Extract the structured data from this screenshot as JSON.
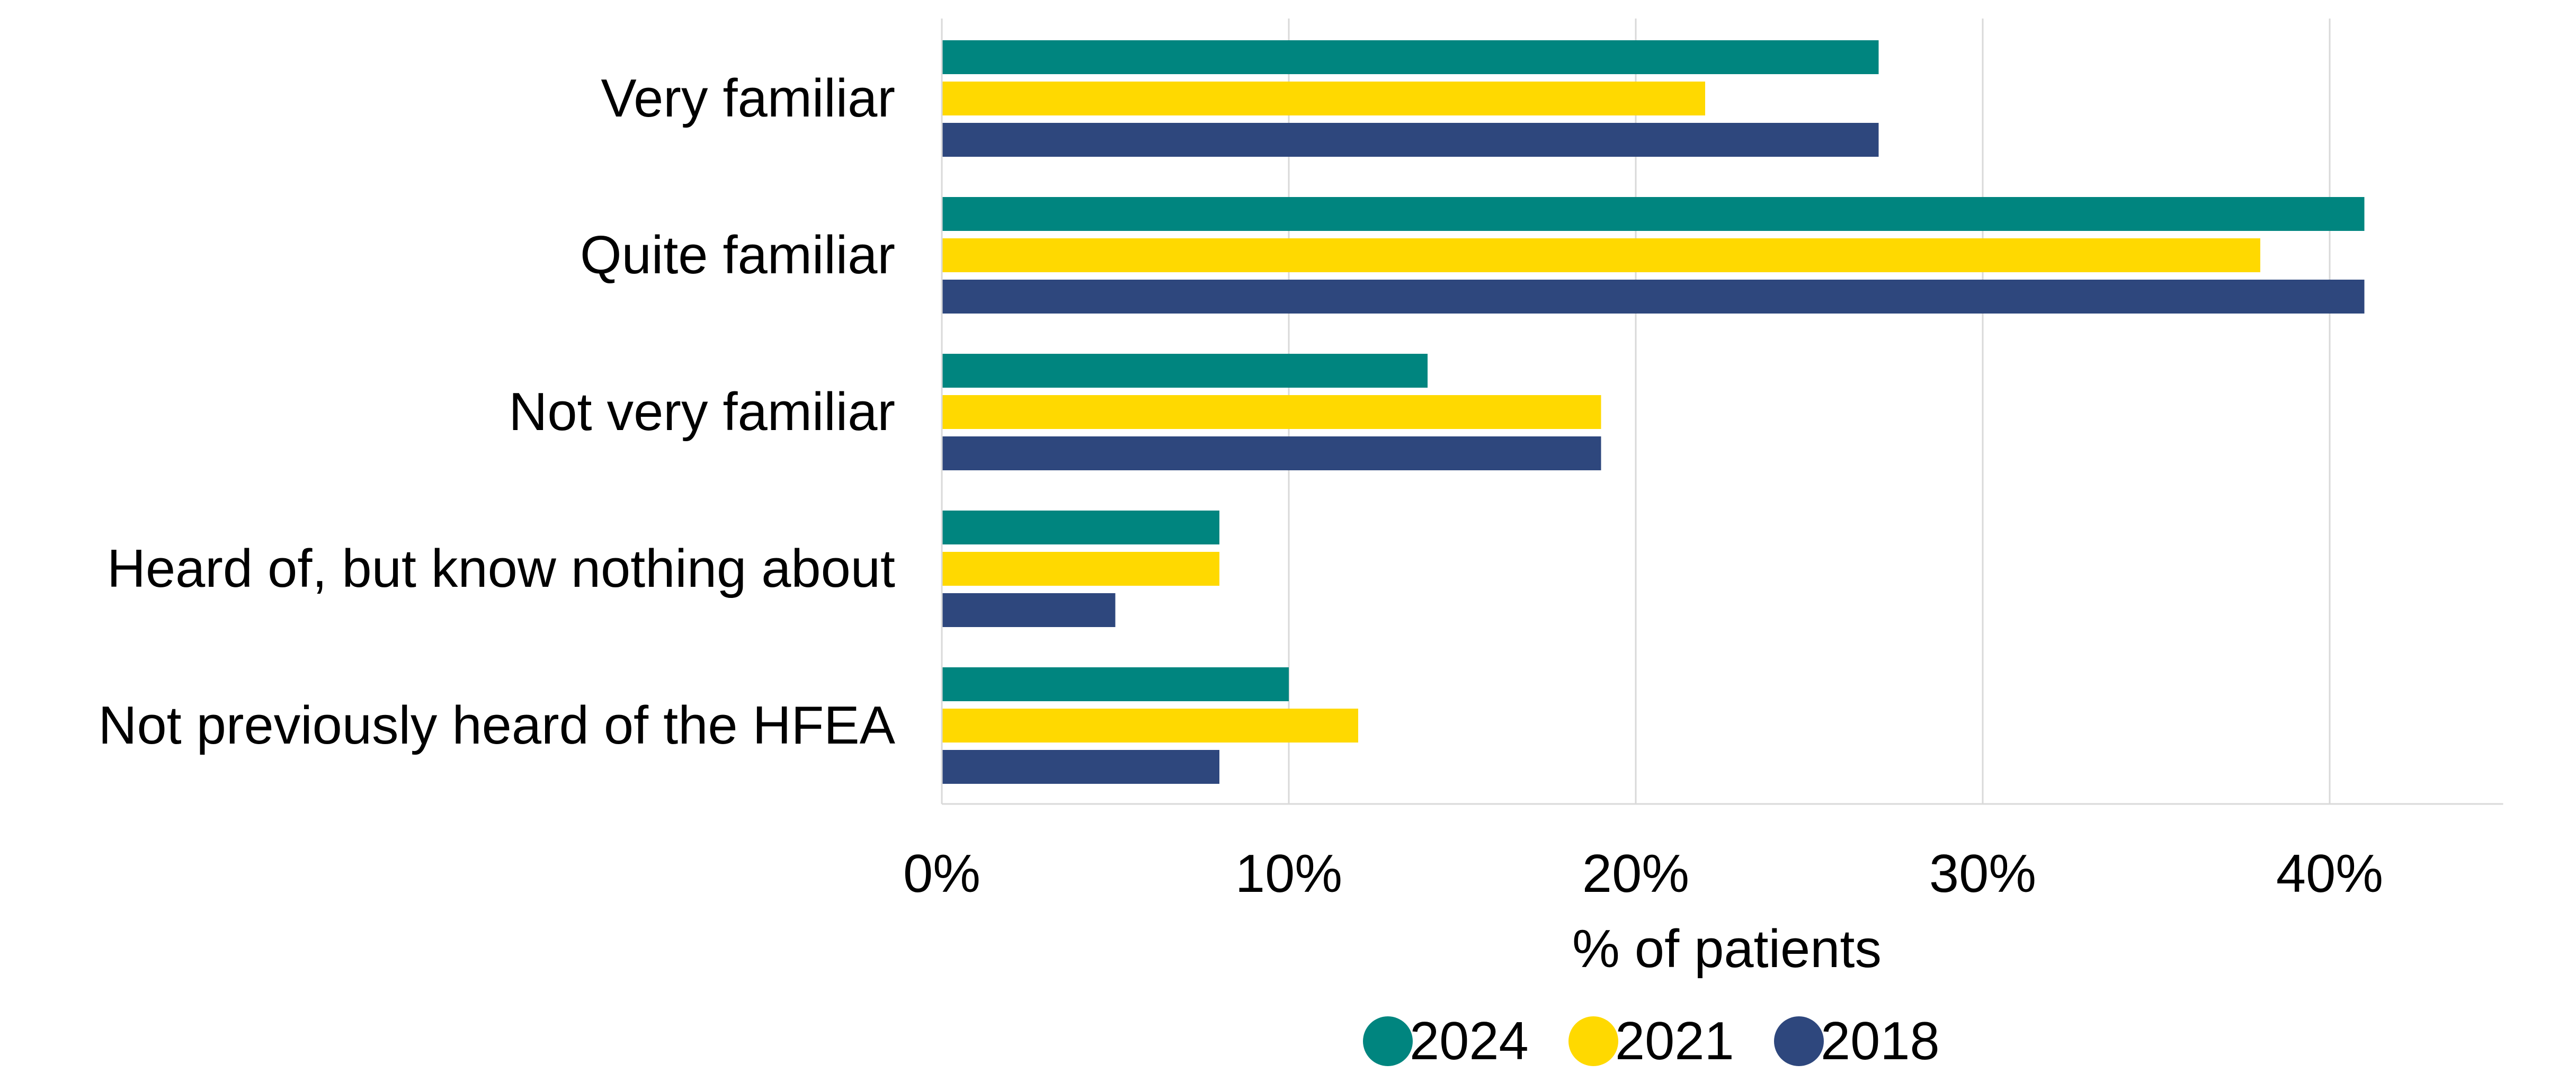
{
  "chart_data": {
    "type": "bar",
    "orientation": "horizontal",
    "title": "",
    "xlabel": "% of patients",
    "ylabel": "",
    "xlim": [
      0,
      45
    ],
    "x_ticks": [
      0,
      10,
      20,
      30,
      40
    ],
    "x_tick_labels": [
      "0%",
      "10%",
      "20%",
      "30%",
      "40%"
    ],
    "grid": true,
    "legend_position": "bottom",
    "categories": [
      "Very familiar",
      "Quite familiar",
      "Not very familiar",
      "Heard of, but know nothing about",
      "Not previously heard of the HFEA"
    ],
    "series": [
      {
        "name": "2024",
        "color": "#00857F",
        "values": [
          27,
          41,
          14,
          8,
          10
        ]
      },
      {
        "name": "2021",
        "color": "#FFD900",
        "values": [
          22,
          38,
          19,
          8,
          12
        ]
      },
      {
        "name": "2018",
        "color": "#2E477D",
        "values": [
          27,
          41,
          19,
          5,
          8
        ]
      }
    ]
  }
}
